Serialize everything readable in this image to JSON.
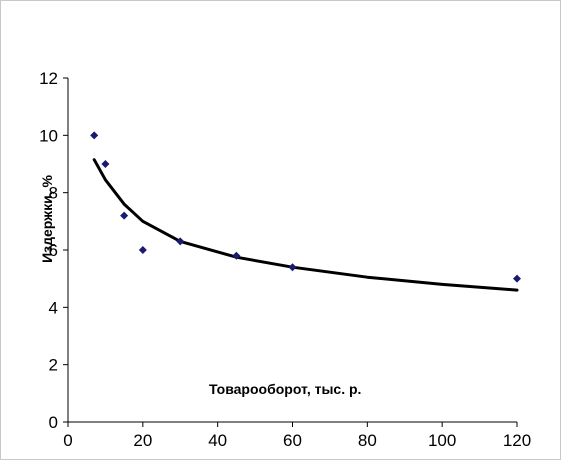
{
  "chart_data": {
    "type": "scatter",
    "xlabel": "Товарооборот, тыс. р.",
    "ylabel": "Издержки, %",
    "xlim": [
      0,
      120
    ],
    "ylim": [
      0,
      12
    ],
    "x_ticks": [
      "0",
      "20",
      "40",
      "60",
      "80",
      "100",
      "120"
    ],
    "y_ticks": [
      "0",
      "2",
      "4",
      "6",
      "8",
      "10",
      "12"
    ],
    "grid": false,
    "legend": "none",
    "points": {
      "x": [
        7,
        10,
        15,
        20,
        30,
        45,
        60,
        120
      ],
      "y": [
        10,
        9,
        7.2,
        6,
        6.3,
        5.8,
        5.4,
        5
      ]
    },
    "trendline": {
      "type": "logarithmic",
      "x": [
        7,
        10,
        15,
        20,
        30,
        45,
        60,
        80,
        100,
        120
      ],
      "y": [
        9.15,
        8.45,
        7.6,
        7.0,
        6.3,
        5.75,
        5.4,
        5.05,
        4.8,
        4.6
      ]
    },
    "colors": {
      "marker": "#1a1a6e",
      "trendline": "#000000",
      "axis": "#000000"
    }
  }
}
